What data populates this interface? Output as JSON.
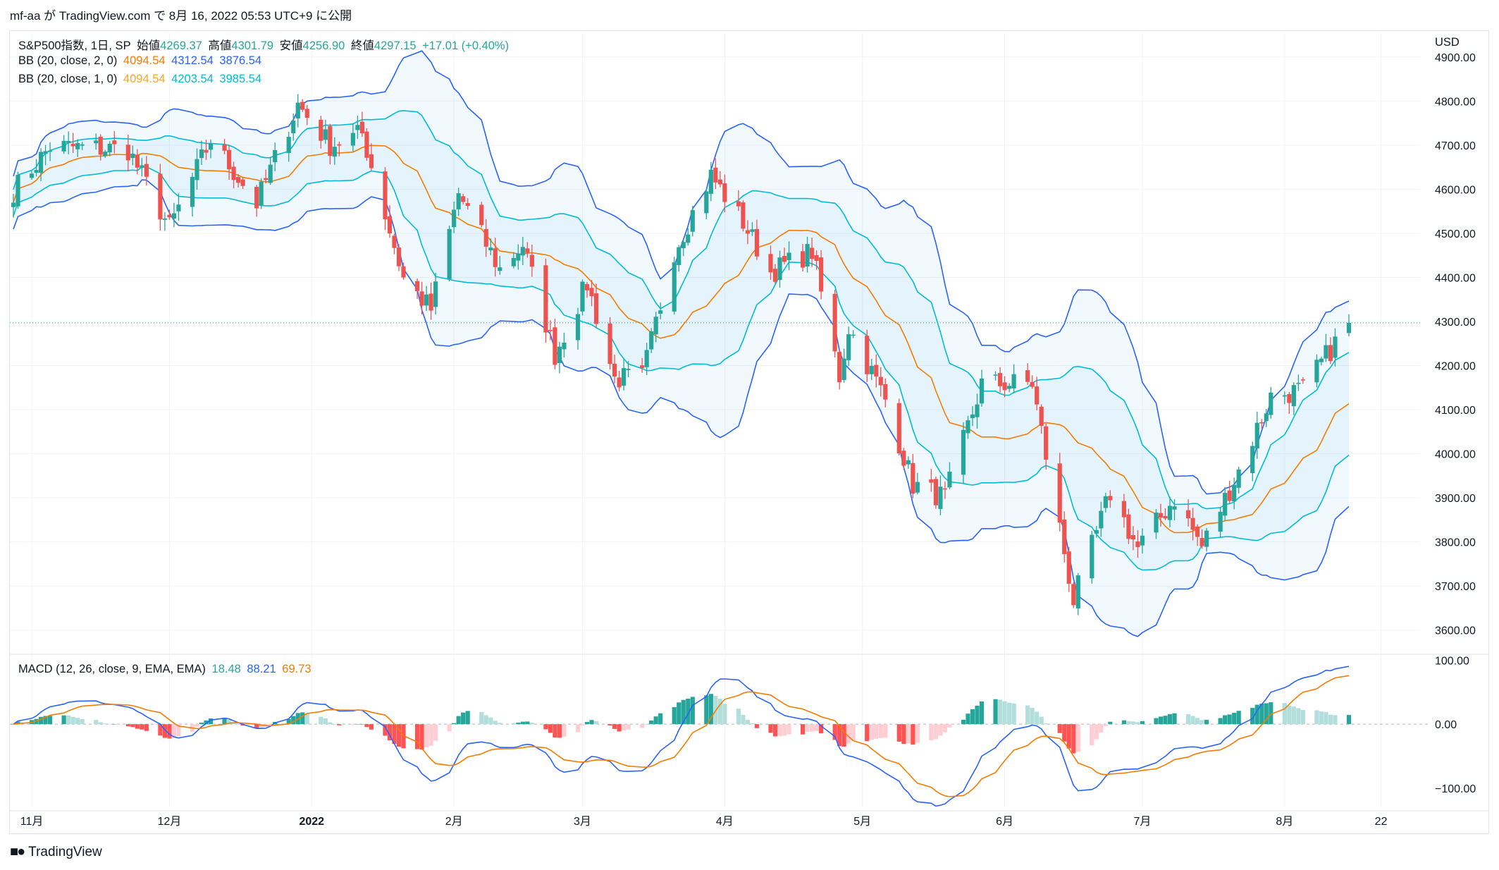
{
  "attribution": "mf-aa が TradingView.com で 8月 16, 2022 05:53 UTC+9 に公開",
  "footer": {
    "brand": "TradingView",
    "logo_icon": "tradingview-logo-icon"
  },
  "legend": {
    "symbol": "S&P500指数, 1日, SP",
    "open_label": "始値",
    "open": "4269.37",
    "high_label": "高値",
    "high": "4301.79",
    "low_label": "安値",
    "low": "4256.90",
    "close_label": "終値",
    "close": "4297.15",
    "change": "+17.01 (+0.40%)",
    "bb2_label": "BB (20, close, 2, 0)",
    "bb2_basis": "4094.54",
    "bb2_upper": "4312.54",
    "bb2_lower": "3876.54",
    "bb1_label": "BB (20, close, 1, 0)",
    "bb1_basis": "4094.54",
    "bb1_upper": "4203.54",
    "bb1_lower": "3985.54",
    "macd_label": "MACD (12, 26, close, 9, EMA, EMA)",
    "macd_hist": "18.48",
    "macd_line": "88.21",
    "macd_signal": "69.73"
  },
  "axes": {
    "currency": "USD",
    "price_ticks": [
      "4900.00",
      "4800.00",
      "4700.00",
      "4600.00",
      "4500.00",
      "4400.00",
      "4300.00",
      "4200.00",
      "4100.00",
      "4000.00",
      "3900.00",
      "3800.00",
      "3700.00",
      "3600.00"
    ],
    "macd_ticks": [
      "100.00",
      "0.00",
      "−100.00"
    ],
    "time_ticks": [
      "11月",
      "12月",
      "2022",
      "2月",
      "3月",
      "4月",
      "5月",
      "6月",
      "7月",
      "8月",
      "22"
    ]
  },
  "colors": {
    "up": "#26a69a",
    "down": "#ef5350",
    "basis": "#f57c00",
    "bb2": "#2962ff",
    "bb1": "#00bcd4",
    "fill": "#e3f2fd",
    "macd": "#2962ff",
    "signal": "#f57c00",
    "hist_up_strong": "#26a69a",
    "hist_up_weak": "#b2dfdb",
    "hist_down_strong": "#ff5252",
    "hist_down_weak": "#ffcdd2"
  },
  "chart_data": {
    "type": "candlestick",
    "x_range": [
      "2021-10-28",
      "2022-08-15"
    ],
    "y_range": [
      3550,
      4930
    ],
    "macd_range": [
      -130,
      105
    ],
    "last_close": 4297.15,
    "anchors": [
      {
        "date": "2021-10-28",
        "close": 4597
      },
      {
        "date": "2021-11-05",
        "close": 4697
      },
      {
        "date": "2021-11-22",
        "close": 4690
      },
      {
        "date": "2021-12-01",
        "close": 4513
      },
      {
        "date": "2021-12-10",
        "close": 4712
      },
      {
        "date": "2021-12-20",
        "close": 4568
      },
      {
        "date": "2021-12-29",
        "close": 4793
      },
      {
        "date": "2022-01-05",
        "close": 4700
      },
      {
        "date": "2022-01-12",
        "close": 4726
      },
      {
        "date": "2022-01-21",
        "close": 4398
      },
      {
        "date": "2022-01-27",
        "close": 4327
      },
      {
        "date": "2022-02-02",
        "close": 4590
      },
      {
        "date": "2022-02-11",
        "close": 4418
      },
      {
        "date": "2022-02-16",
        "close": 4475
      },
      {
        "date": "2022-02-23",
        "close": 4225
      },
      {
        "date": "2022-03-02",
        "close": 4386
      },
      {
        "date": "2022-03-08",
        "close": 4170
      },
      {
        "date": "2022-03-14",
        "close": 4173
      },
      {
        "date": "2022-03-21",
        "close": 4461
      },
      {
        "date": "2022-03-29",
        "close": 4631
      },
      {
        "date": "2022-04-05",
        "close": 4525
      },
      {
        "date": "2022-04-11",
        "close": 4412
      },
      {
        "date": "2022-04-20",
        "close": 4459
      },
      {
        "date": "2022-04-26",
        "close": 4175
      },
      {
        "date": "2022-04-28",
        "close": 4287
      },
      {
        "date": "2022-05-06",
        "close": 4123
      },
      {
        "date": "2022-05-12",
        "close": 3930
      },
      {
        "date": "2022-05-19",
        "close": 3900
      },
      {
        "date": "2022-05-27",
        "close": 4158
      },
      {
        "date": "2022-06-07",
        "close": 4160
      },
      {
        "date": "2022-06-16",
        "close": 3667
      },
      {
        "date": "2022-06-24",
        "close": 3911
      },
      {
        "date": "2022-06-30",
        "close": 3785
      },
      {
        "date": "2022-07-08",
        "close": 3899
      },
      {
        "date": "2022-07-14",
        "close": 3790
      },
      {
        "date": "2022-07-22",
        "close": 3962
      },
      {
        "date": "2022-07-29",
        "close": 4130
      },
      {
        "date": "2022-08-05",
        "close": 4145
      },
      {
        "date": "2022-08-15",
        "close": 4297
      }
    ]
  }
}
